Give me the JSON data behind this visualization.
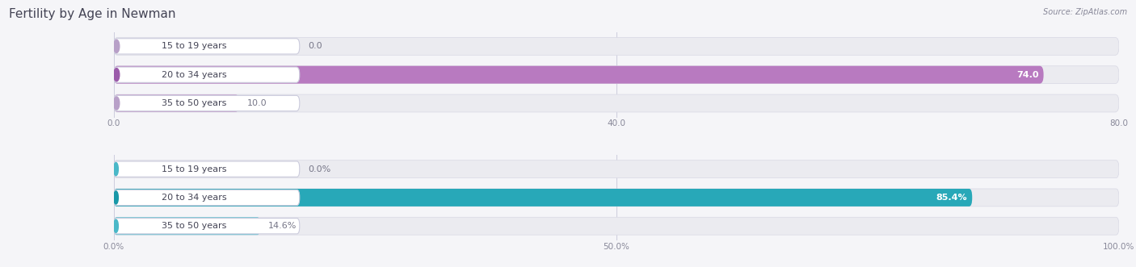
{
  "title": "Fertility by Age in Newman",
  "source": "Source: ZipAtlas.com",
  "top_chart": {
    "categories": [
      "15 to 19 years",
      "20 to 34 years",
      "35 to 50 years"
    ],
    "values": [
      0.0,
      74.0,
      10.0
    ],
    "max_value": 80.0,
    "x_ticks": [
      0.0,
      40.0,
      80.0
    ],
    "x_tick_labels": [
      "0.0",
      "40.0",
      "80.0"
    ],
    "bar_color": "#c49ac4",
    "bar_color_dark": [
      "#b8a0c8",
      "#9b5baa",
      "#b8a0c8"
    ],
    "bar_color_fill": [
      "#d0b8d8",
      "#b87ac0",
      "#c8a8d0"
    ],
    "value_labels": [
      "0.0",
      "74.0",
      "10.0"
    ],
    "value_inside": [
      false,
      true,
      false
    ]
  },
  "bottom_chart": {
    "categories": [
      "15 to 19 years",
      "20 to 34 years",
      "35 to 50 years"
    ],
    "values": [
      0.0,
      85.4,
      14.6
    ],
    "max_value": 100.0,
    "x_ticks": [
      0.0,
      50.0,
      100.0
    ],
    "x_tick_labels": [
      "0.0%",
      "50.0%",
      "100.0%"
    ],
    "bar_color_dark": [
      "#4ab8c8",
      "#1898a8",
      "#4ab8c8"
    ],
    "bar_color_fill": [
      "#70c8d8",
      "#28a8b8",
      "#60c0d0"
    ],
    "value_labels": [
      "0.0%",
      "85.4%",
      "14.6%"
    ],
    "value_inside": [
      false,
      true,
      false
    ]
  },
  "bg_color": "#f5f5f8",
  "bar_bg_color": "#ebebf0",
  "pill_bg": "#ffffff",
  "pill_border": "#ddddee",
  "title_color": "#444455",
  "source_color": "#888899",
  "tick_color": "#888899",
  "value_color_inside": "#ffffff",
  "value_color_outside": "#777788",
  "label_color": "#444455",
  "title_fontsize": 11,
  "label_fontsize": 8,
  "value_fontsize": 8,
  "tick_fontsize": 7.5
}
